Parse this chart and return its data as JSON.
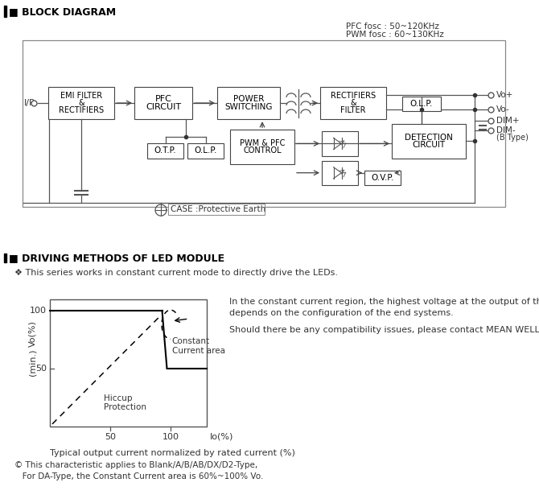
{
  "title_block": "BLOCK DIAGRAM",
  "title_driving": "DRIVING METHODS OF LED MODULE",
  "pfc_fosc": "PFC fosc : 50~120KHz",
  "pwm_fosc": "PWM fosc : 60~130KHz",
  "note1": "❖ This series works in constant current mode to directly drive the LEDs.",
  "note2_line1": "In the constant current region, the highest voltage at the output of the driver",
  "note2_line2": "depends on the configuration of the end systems.",
  "note3": "Should there be any compatibility issues, please contact MEAN WELL.",
  "note4": "Typical output current normalized by rated current (%)",
  "note5_line1": "© This characteristic applies to Blank/A/B/AB/DX/D2-Type,",
  "note5_line2": "   For DA-Type, the Constant Current area is 60%~100% Vo.",
  "label_constant": "Constant\nCurrent area",
  "label_hiccup": "Hiccup\nProtection",
  "bg_color": "#ffffff"
}
